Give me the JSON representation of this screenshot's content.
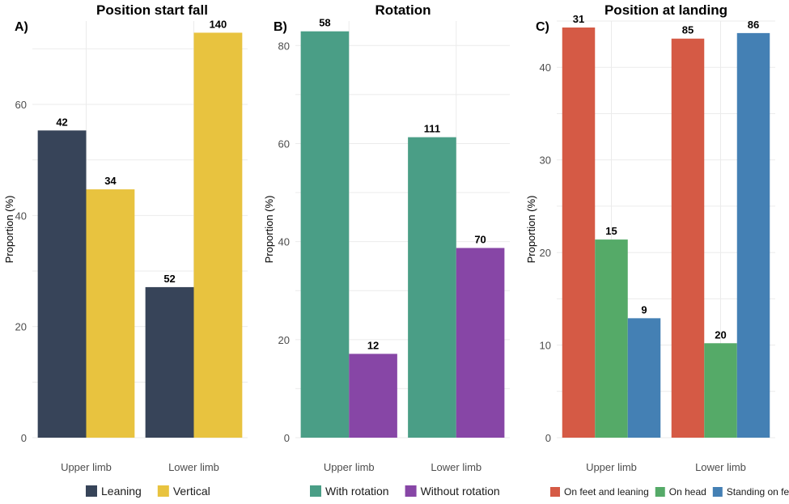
{
  "chart_data": [
    {
      "type": "bar",
      "panel_label": "A)",
      "title": "Position start fall",
      "xlabel": "",
      "ylabel": "Proportion (%)",
      "ylim": [
        0,
        75
      ],
      "yticks": [
        0,
        20,
        40,
        60
      ],
      "categories": [
        "Upper limb",
        "Lower limb"
      ],
      "legend_position": "bottom",
      "series": [
        {
          "name": "Leaning",
          "color": "#374459",
          "values": [
            55.3,
            27.1
          ],
          "labels": [
            "42",
            "52"
          ]
        },
        {
          "name": "Vertical",
          "color": "#E8C33F",
          "values": [
            44.7,
            72.9
          ],
          "labels": [
            "34",
            "140"
          ]
        }
      ]
    },
    {
      "type": "bar",
      "panel_label": "B)",
      "title": "Rotation",
      "xlabel": "",
      "ylabel": "Proportion (%)",
      "ylim": [
        0,
        85
      ],
      "yticks": [
        0,
        20,
        40,
        60,
        80
      ],
      "categories": [
        "Upper limb",
        "Lower limb"
      ],
      "legend_position": "bottom",
      "series": [
        {
          "name": "With rotation",
          "color": "#4A9E86",
          "values": [
            82.9,
            61.3
          ],
          "labels": [
            "58",
            "111"
          ]
        },
        {
          "name": "Without rotation",
          "color": "#8746A6",
          "values": [
            17.1,
            38.7
          ],
          "labels": [
            "12",
            "70"
          ]
        }
      ]
    },
    {
      "type": "bar",
      "panel_label": "C)",
      "title": "Position at landing",
      "xlabel": "",
      "ylabel": "Proportion (%)",
      "ylim": [
        0,
        45
      ],
      "yticks": [
        0,
        10,
        20,
        30,
        40
      ],
      "categories": [
        "Upper limb",
        "Lower limb"
      ],
      "legend_position": "bottom",
      "series": [
        {
          "name": "On feet and leaning",
          "color": "#D55A45",
          "values": [
            44.3,
            43.1
          ],
          "labels": [
            "31",
            "85"
          ]
        },
        {
          "name": "On head",
          "color": "#55AA68",
          "values": [
            21.4,
            10.2
          ],
          "labels": [
            "15",
            "20"
          ]
        },
        {
          "name": "Standing on feet",
          "color": "#4480B4",
          "values": [
            12.9,
            43.7
          ],
          "labels": [
            "9",
            "86"
          ]
        }
      ]
    }
  ]
}
